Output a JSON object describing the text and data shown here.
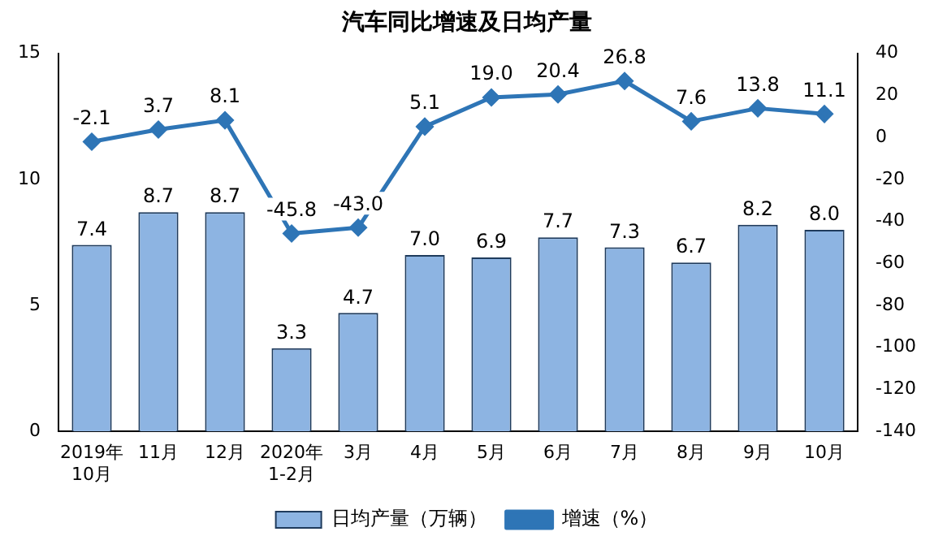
{
  "chart_data": {
    "type": "bar",
    "title": "汽车同比增速及日均产量",
    "categories": [
      "2019年\n10月",
      "11月",
      "12月",
      "2020年\n1-2月",
      "3月",
      "4月",
      "5月",
      "6月",
      "7月",
      "8月",
      "9月",
      "10月"
    ],
    "series": [
      {
        "name": "日均产量（万辆）",
        "color": "#8db4e2",
        "values": [
          7.4,
          8.7,
          8.7,
          3.3,
          4.7,
          7.0,
          6.9,
          7.7,
          7.3,
          6.7,
          8.2,
          8.0
        ],
        "value_labels": [
          "7.4",
          "8.7",
          "8.7",
          "3.3",
          "4.7",
          "7.0",
          "6.9",
          "7.7",
          "7.3",
          "6.7",
          "8.2",
          "8.0"
        ]
      },
      {
        "name": "增速（%）",
        "type": "line",
        "axis": "y2",
        "color": "#2e75b6",
        "marker": "diamond",
        "values": [
          -2.1,
          3.7,
          8.1,
          -45.8,
          -43.0,
          5.1,
          19.0,
          20.4,
          26.8,
          7.6,
          13.8,
          11.1
        ],
        "value_labels": [
          "-2.1",
          "3.7",
          "8.1",
          "-45.8",
          "-43.0",
          "5.1",
          "19.0",
          "20.4",
          "26.8",
          "7.6",
          "13.8",
          "11.1"
        ]
      }
    ],
    "ylim": [
      0,
      15
    ],
    "yticks": [
      0,
      5,
      10,
      15
    ],
    "y2lim": [
      -140,
      40
    ],
    "y2ticks": [
      -140,
      -120,
      -100,
      -80,
      -60,
      -40,
      -20,
      0,
      20,
      40
    ],
    "grid": false,
    "legend": "bottom"
  }
}
